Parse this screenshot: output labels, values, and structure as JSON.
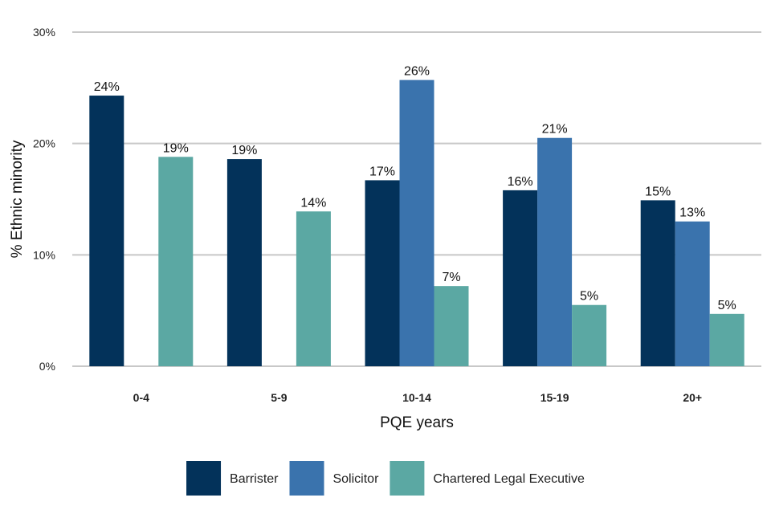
{
  "chart_data": {
    "type": "bar",
    "title": "",
    "xlabel": "PQE years",
    "ylabel": "% Ethnic minority",
    "ylim": [
      0,
      30
    ],
    "yticks": [
      {
        "value": 0,
        "label": "0%"
      },
      {
        "value": 10,
        "label": "10%"
      },
      {
        "value": 20,
        "label": "20%"
      },
      {
        "value": 30,
        "label": "30%"
      }
    ],
    "grid": true,
    "legend_position": "bottom",
    "categories": [
      "0-4",
      "5-9",
      "10-14",
      "15-19",
      "20+"
    ],
    "series": [
      {
        "name": "Barrister",
        "color": "#03325a",
        "values": [
          24.3,
          18.6,
          16.7,
          15.8,
          14.9
        ],
        "labels": [
          "24%",
          "19%",
          "17%",
          "16%",
          "15%"
        ]
      },
      {
        "name": "Solicitor",
        "color": "#3a73ad",
        "values": [
          null,
          null,
          25.7,
          20.5,
          13.0
        ],
        "labels": [
          null,
          null,
          "26%",
          "21%",
          "13%"
        ]
      },
      {
        "name": "Chartered Legal Executive",
        "color": "#5ba8a3",
        "values": [
          18.8,
          13.9,
          7.2,
          5.5,
          4.7
        ],
        "labels": [
          "19%",
          "14%",
          "7%",
          "5%",
          "5%"
        ]
      }
    ]
  }
}
